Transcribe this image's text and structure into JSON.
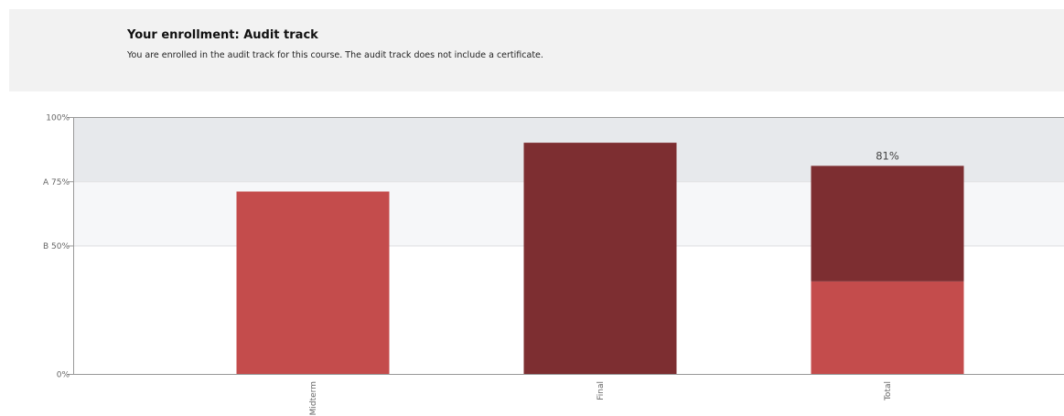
{
  "banner": {
    "title": "Your enrollment: Audit track",
    "text": "You are enrolled in the audit track for this course. The audit track does not include a certificate."
  },
  "colors": {
    "banner_bg": "#f2f2f2",
    "band_a": "#e7e9ec",
    "band_b": "#f6f7f9",
    "bar_light": "#c44c4c",
    "bar_dark": "#7d2e31",
    "axis": "#999999"
  },
  "chart_data": {
    "type": "bar",
    "ylim": [
      0,
      100
    ],
    "yticks": [
      {
        "value": 100,
        "label": "100%"
      },
      {
        "value": 75,
        "label": "A 75%"
      },
      {
        "value": 50,
        "label": "B 50%"
      },
      {
        "value": 0,
        "label": "0%"
      }
    ],
    "grade_bands": [
      {
        "grade": "A",
        "from": 75,
        "to": 100
      },
      {
        "grade": "B",
        "from": 50,
        "to": 75
      }
    ],
    "categories": [
      "Midterm",
      "Final",
      "Total"
    ],
    "bars": [
      {
        "category": "Midterm",
        "segments": [
          {
            "value": 71,
            "shade": "light"
          }
        ]
      },
      {
        "category": "Final",
        "segments": [
          {
            "value": 90,
            "shade": "dark"
          }
        ]
      },
      {
        "category": "Total",
        "segments": [
          {
            "value": 36,
            "shade": "light"
          },
          {
            "value": 45,
            "shade": "dark"
          }
        ],
        "label": "81%"
      }
    ]
  }
}
